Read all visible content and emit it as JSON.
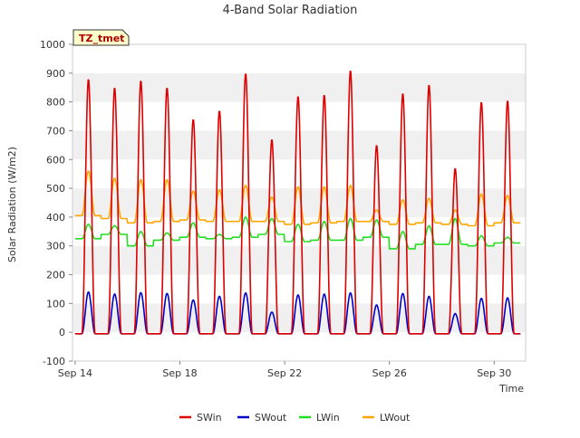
{
  "chart_data": {
    "type": "line",
    "title": "4-Band Solar Radiation",
    "xlabel": "Time",
    "ylabel": "Solar Radiation (W/m2)",
    "station_label": "TZ_tmet",
    "xlim": [
      "2024-09-14",
      "2024-10-02"
    ],
    "ylim": [
      -100,
      1000
    ],
    "yticks": [
      -100,
      0,
      100,
      200,
      300,
      400,
      500,
      600,
      700,
      800,
      900,
      1000
    ],
    "xticks": [
      "Sep 14",
      "Sep 18",
      "Sep 22",
      "Sep 26",
      "Sep 30"
    ],
    "xtick_days": [
      0,
      4,
      8,
      12,
      16
    ],
    "grid": "horizontal-bands",
    "legend_position": "bottom-center",
    "days": [
      "Sep 14",
      "Sep 15",
      "Sep 16",
      "Sep 17",
      "Sep 18",
      "Sep 19",
      "Sep 20",
      "Sep 21",
      "Sep 22",
      "Sep 23",
      "Sep 24",
      "Sep 25",
      "Sep 26",
      "Sep 27",
      "Sep 28",
      "Sep 29",
      "Sep 30"
    ],
    "series": [
      {
        "name": "SWin",
        "color": "#dd0000",
        "daily_peak": [
          880,
          850,
          875,
          850,
          740,
          770,
          900,
          670,
          820,
          825,
          910,
          650,
          830,
          860,
          570,
          800,
          805
        ],
        "night_value": -5
      },
      {
        "name": "SWout",
        "color": "#0000cc",
        "daily_peak": [
          140,
          133,
          138,
          135,
          112,
          125,
          137,
          70,
          130,
          133,
          137,
          95,
          135,
          125,
          65,
          118,
          120
        ],
        "night_value": -5
      },
      {
        "name": "LWin",
        "color": "#22dd22",
        "daily_peak": [
          375,
          370,
          350,
          345,
          380,
          340,
          400,
          395,
          375,
          385,
          395,
          390,
          350,
          370,
          395,
          335,
          330
        ],
        "night_value": [
          325,
          340,
          300,
          320,
          330,
          325,
          330,
          340,
          315,
          320,
          320,
          330,
          290,
          305,
          305,
          300,
          310
        ]
      },
      {
        "name": "LWout",
        "color": "#ffa500",
        "daily_peak": [
          560,
          535,
          530,
          530,
          490,
          495,
          510,
          470,
          505,
          505,
          510,
          425,
          460,
          465,
          425,
          480,
          475
        ],
        "night_value": [
          405,
          395,
          380,
          385,
          390,
          385,
          385,
          385,
          375,
          380,
          385,
          385,
          375,
          380,
          375,
          370,
          380
        ]
      }
    ]
  }
}
